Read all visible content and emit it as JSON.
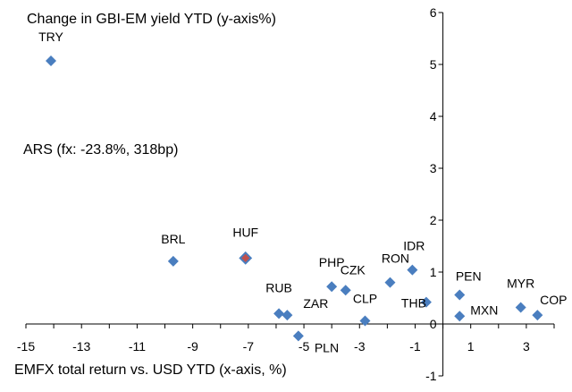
{
  "chart_data": {
    "type": "scatter",
    "ylabel": "Change in GBI-EM yield YTD (y-axis%)",
    "xlabel": "EMFX total return vs. USD YTD (x-axis, %)",
    "annotation": "ARS (fx: -23.8%, 318bp)",
    "xlim": [
      -15,
      4
    ],
    "ylim": [
      -1,
      6
    ],
    "xticks": [
      -15,
      -13,
      -11,
      -9,
      -7,
      -5,
      -3,
      -1,
      1,
      3
    ],
    "yticks": [
      -1,
      0,
      1,
      2,
      3,
      4,
      5,
      6
    ],
    "colors": {
      "marker": "#4a7ebf",
      "highlight": "#c0504d",
      "axis": "#000000"
    },
    "points": [
      {
        "label": "TRY",
        "x": -14.1,
        "y": 5.07
      },
      {
        "label": "BRL",
        "x": -9.7,
        "y": 1.21
      },
      {
        "label": "HUF",
        "x": -7.1,
        "y": 1.27,
        "highlight": true
      },
      {
        "label": "RUB",
        "x": -5.9,
        "y": 0.2
      },
      {
        "label": "ZAR",
        "x": -5.6,
        "y": 0.17
      },
      {
        "label": "PLN",
        "x": -5.2,
        "y": -0.23
      },
      {
        "label": "PHP",
        "x": -4.0,
        "y": 0.72
      },
      {
        "label": "CZK",
        "x": -3.5,
        "y": 0.65
      },
      {
        "label": "CLP",
        "x": -2.8,
        "y": 0.06
      },
      {
        "label": "RON",
        "x": -1.9,
        "y": 0.8
      },
      {
        "label": "IDR",
        "x": -1.1,
        "y": 1.04
      },
      {
        "label": "THB",
        "x": -0.6,
        "y": 0.42
      },
      {
        "label": "PEN",
        "x": 0.6,
        "y": 0.56
      },
      {
        "label": "MXN",
        "x": 0.6,
        "y": 0.15
      },
      {
        "label": "MYR",
        "x": 2.8,
        "y": 0.32
      },
      {
        "label": "COP",
        "x": 3.4,
        "y": 0.17
      }
    ]
  }
}
